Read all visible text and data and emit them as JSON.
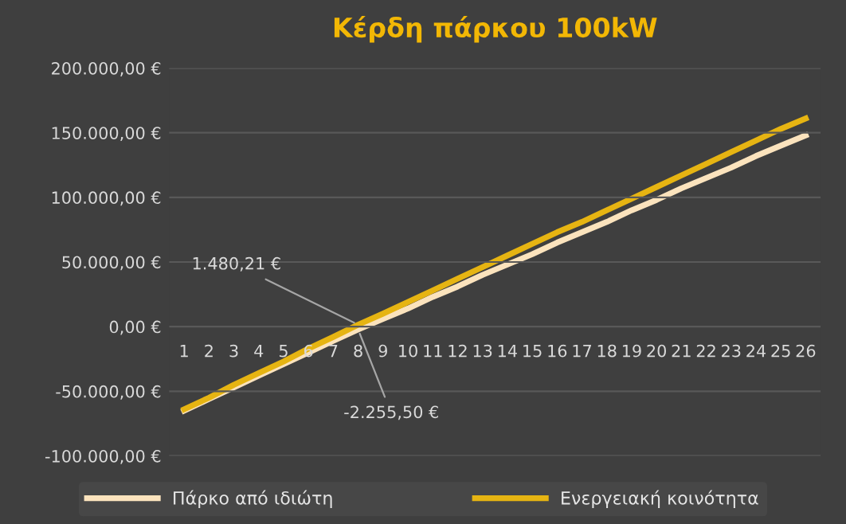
{
  "chart_data": {
    "type": "line",
    "title": "Κέρδη πάρκου 100kW",
    "categories": [
      "1",
      "2",
      "3",
      "4",
      "5",
      "6",
      "7",
      "8",
      "9",
      "10",
      "11",
      "12",
      "13",
      "14",
      "15",
      "16",
      "17",
      "18",
      "19",
      "20",
      "21",
      "22",
      "23",
      "24",
      "25",
      "26"
    ],
    "series": [
      {
        "name": "Πάρκο από ιδιώτη",
        "color": "#fbe3bd",
        "values": [
          -65000,
          -56000,
          -47000,
          -38000,
          -29000,
          -20000,
          -11000,
          -2255.5,
          6000,
          14000,
          23000,
          31000,
          40000,
          48000,
          56000,
          65000,
          73000,
          81000,
          90000,
          98000,
          107000,
          115000,
          123000,
          132000,
          140000,
          148000
        ]
      },
      {
        "name": "Ενεργειακή κοινότητα",
        "color": "#e6b412",
        "values": [
          -64000,
          -55000,
          -45000,
          -36000,
          -27000,
          -17000,
          -8000,
          1480.21,
          10000,
          19000,
          28000,
          37000,
          46000,
          55000,
          64000,
          73000,
          81000,
          90000,
          99000,
          108000,
          117000,
          126000,
          135000,
          144000,
          153000,
          161000
        ]
      }
    ],
    "ylim": [
      -100000,
      200000
    ],
    "yticks": [
      {
        "value": -100000,
        "label": "-100.000,00 €"
      },
      {
        "value": -50000,
        "label": "-50.000,00 €"
      },
      {
        "value": 0,
        "label": "0,00 €"
      },
      {
        "value": 50000,
        "label": "50.000,00 €"
      },
      {
        "value": 100000,
        "label": "100.000,00 €"
      },
      {
        "value": 150000,
        "label": "150.000,00 €"
      },
      {
        "value": 200000,
        "label": "200.000,00 €"
      }
    ],
    "annotations": [
      {
        "text": "1.480,21 €",
        "x": "8",
        "y": 1480.21
      },
      {
        "text": "-2.255,50 €",
        "x": "8",
        "y": -2255.5
      }
    ],
    "grid": "y",
    "legend": "bottom",
    "marker": "none",
    "line_style": "solid"
  }
}
